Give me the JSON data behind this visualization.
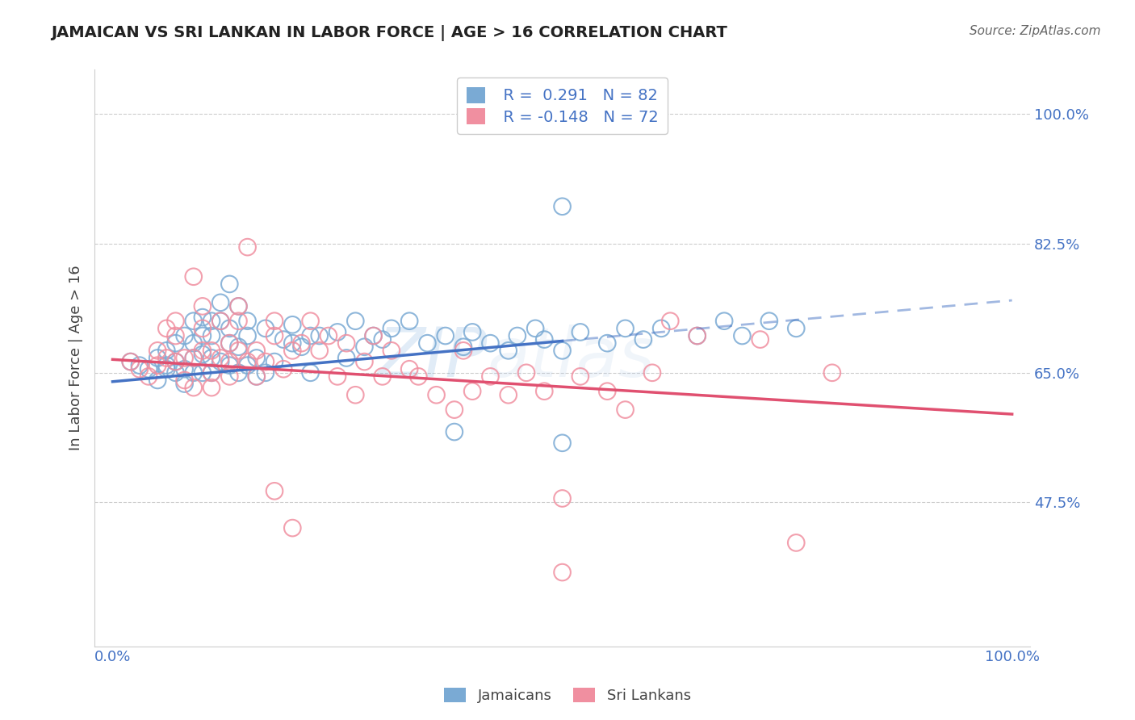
{
  "title": "JAMAICAN VS SRI LANKAN IN LABOR FORCE | AGE > 16 CORRELATION CHART",
  "source_text": "Source: ZipAtlas.com",
  "ylabel": "In Labor Force | Age > 16",
  "x_tick_labels": [
    "0.0%",
    "100.0%"
  ],
  "y_tick_labels": [
    "47.5%",
    "65.0%",
    "82.5%",
    "100.0%"
  ],
  "xlim": [
    -0.02,
    1.02
  ],
  "ylim": [
    0.28,
    1.06
  ],
  "y_ticks": [
    0.475,
    0.65,
    0.825,
    1.0
  ],
  "legend_r1": "R =  0.291",
  "legend_n1": "N = 82",
  "legend_r2": "R = -0.148",
  "legend_n2": "N = 72",
  "color_jamaican": "#7aaad4",
  "color_srilanka": "#f08fa0",
  "color_jamaican_line": "#4472C4",
  "color_srilanka_line": "#e05070",
  "trendline_jamaican_solid": [
    0.0,
    0.638,
    0.5,
    0.693
  ],
  "trendline_jamaican_dashed": [
    0.5,
    0.693,
    1.0,
    0.748
  ],
  "trendline_srilanka": [
    0.0,
    0.668,
    1.0,
    0.594
  ],
  "watermark_zip": "ZIP",
  "watermark_atlas": "atlas",
  "legend_labels": [
    "Jamaicans",
    "Sri Lankans"
  ],
  "jamaican_x": [
    0.02,
    0.03,
    0.04,
    0.05,
    0.05,
    0.06,
    0.06,
    0.06,
    0.07,
    0.07,
    0.07,
    0.08,
    0.08,
    0.08,
    0.09,
    0.09,
    0.09,
    0.09,
    0.1,
    0.1,
    0.1,
    0.1,
    0.11,
    0.11,
    0.11,
    0.11,
    0.12,
    0.12,
    0.12,
    0.13,
    0.13,
    0.13,
    0.13,
    0.14,
    0.14,
    0.14,
    0.15,
    0.15,
    0.15,
    0.16,
    0.16,
    0.17,
    0.17,
    0.18,
    0.19,
    0.2,
    0.2,
    0.21,
    0.22,
    0.22,
    0.23,
    0.25,
    0.26,
    0.27,
    0.28,
    0.29,
    0.3,
    0.31,
    0.33,
    0.35,
    0.37,
    0.39,
    0.4,
    0.42,
    0.44,
    0.45,
    0.47,
    0.48,
    0.5,
    0.5,
    0.52,
    0.55,
    0.57,
    0.59,
    0.61,
    0.65,
    0.68,
    0.7,
    0.73,
    0.76,
    0.5,
    0.38
  ],
  "jamaican_y": [
    0.665,
    0.66,
    0.655,
    0.64,
    0.67,
    0.66,
    0.655,
    0.68,
    0.65,
    0.665,
    0.69,
    0.635,
    0.655,
    0.7,
    0.65,
    0.67,
    0.69,
    0.72,
    0.65,
    0.675,
    0.7,
    0.725,
    0.65,
    0.67,
    0.7,
    0.72,
    0.665,
    0.72,
    0.745,
    0.66,
    0.69,
    0.71,
    0.77,
    0.65,
    0.685,
    0.74,
    0.66,
    0.7,
    0.72,
    0.645,
    0.67,
    0.65,
    0.71,
    0.665,
    0.695,
    0.69,
    0.715,
    0.685,
    0.7,
    0.65,
    0.7,
    0.705,
    0.67,
    0.72,
    0.685,
    0.7,
    0.695,
    0.71,
    0.72,
    0.69,
    0.7,
    0.685,
    0.705,
    0.69,
    0.68,
    0.7,
    0.71,
    0.695,
    0.555,
    0.68,
    0.705,
    0.69,
    0.71,
    0.695,
    0.71,
    0.7,
    0.72,
    0.7,
    0.72,
    0.71,
    0.875,
    0.57
  ],
  "srilanka_x": [
    0.02,
    0.03,
    0.04,
    0.05,
    0.05,
    0.06,
    0.06,
    0.07,
    0.07,
    0.07,
    0.08,
    0.08,
    0.09,
    0.09,
    0.09,
    0.1,
    0.1,
    0.1,
    0.11,
    0.11,
    0.11,
    0.12,
    0.12,
    0.13,
    0.13,
    0.13,
    0.14,
    0.14,
    0.14,
    0.15,
    0.15,
    0.16,
    0.16,
    0.17,
    0.18,
    0.18,
    0.19,
    0.2,
    0.21,
    0.22,
    0.23,
    0.24,
    0.25,
    0.26,
    0.27,
    0.28,
    0.29,
    0.3,
    0.31,
    0.33,
    0.34,
    0.36,
    0.38,
    0.39,
    0.4,
    0.42,
    0.44,
    0.46,
    0.48,
    0.5,
    0.52,
    0.55,
    0.57,
    0.6,
    0.62,
    0.65,
    0.5,
    0.72,
    0.76,
    0.8,
    0.18,
    0.2
  ],
  "srilanka_y": [
    0.665,
    0.655,
    0.645,
    0.66,
    0.68,
    0.67,
    0.71,
    0.665,
    0.7,
    0.72,
    0.64,
    0.67,
    0.63,
    0.67,
    0.78,
    0.71,
    0.74,
    0.68,
    0.65,
    0.68,
    0.63,
    0.67,
    0.72,
    0.645,
    0.665,
    0.69,
    0.68,
    0.72,
    0.74,
    0.665,
    0.82,
    0.645,
    0.68,
    0.665,
    0.7,
    0.72,
    0.655,
    0.68,
    0.69,
    0.72,
    0.68,
    0.7,
    0.645,
    0.69,
    0.62,
    0.665,
    0.7,
    0.645,
    0.68,
    0.655,
    0.645,
    0.62,
    0.6,
    0.68,
    0.625,
    0.645,
    0.62,
    0.65,
    0.625,
    0.48,
    0.645,
    0.625,
    0.6,
    0.65,
    0.72,
    0.7,
    0.38,
    0.695,
    0.42,
    0.65,
    0.49,
    0.44
  ]
}
